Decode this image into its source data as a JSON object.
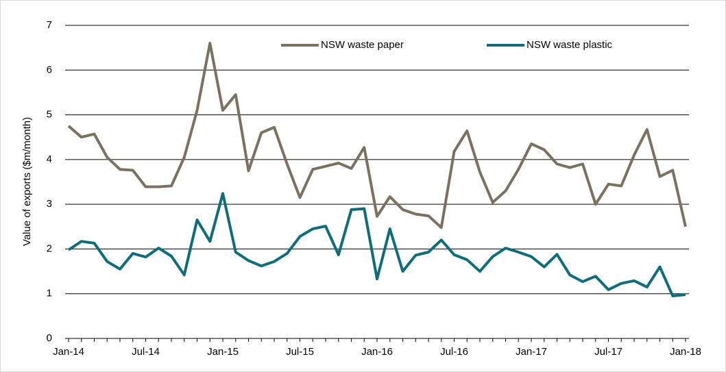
{
  "chart_data": {
    "type": "line",
    "y_label": "Value of exports ($m/month)",
    "x": [
      "Jan-14",
      null,
      null,
      null,
      null,
      null,
      "Jul-14",
      null,
      null,
      null,
      null,
      null,
      "Jan-15",
      null,
      null,
      null,
      null,
      null,
      "Jul-15",
      null,
      null,
      null,
      null,
      null,
      "Jan-16",
      null,
      null,
      null,
      null,
      null,
      "Jul-16",
      null,
      null,
      null,
      null,
      null,
      "Jan-17",
      null,
      null,
      null,
      null,
      null,
      "Jul-17",
      null,
      null,
      null,
      null,
      null,
      "Jan-18"
    ],
    "series": [
      {
        "name": "NSW waste paper",
        "color": "#7a7160",
        "values": [
          4.75,
          4.5,
          4.57,
          4.05,
          3.78,
          3.76,
          3.39,
          3.39,
          3.41,
          4.05,
          5.1,
          6.6,
          5.1,
          5.45,
          3.75,
          4.6,
          4.72,
          3.9,
          3.15,
          3.78,
          3.85,
          3.92,
          3.8,
          4.27,
          2.73,
          3.17,
          2.88,
          2.78,
          2.74,
          2.48,
          4.18,
          4.64,
          3.72,
          3.04,
          3.3,
          3.78,
          4.35,
          4.22,
          3.9,
          3.82,
          3.9,
          3.0,
          3.45,
          3.41,
          4.1,
          4.67,
          3.62,
          3.76,
          2.5
        ]
      },
      {
        "name": "NSW waste plastic",
        "color": "#0f6d7b",
        "values": [
          1.98,
          2.17,
          2.13,
          1.72,
          1.55,
          1.9,
          1.82,
          2.02,
          1.84,
          1.42,
          2.65,
          2.17,
          3.24,
          1.93,
          1.74,
          1.62,
          1.72,
          1.9,
          2.28,
          2.45,
          2.51,
          1.87,
          2.88,
          2.9,
          1.33,
          2.45,
          1.5,
          1.86,
          1.93,
          2.2,
          1.87,
          1.76,
          1.5,
          1.83,
          2.02,
          1.93,
          1.83,
          1.6,
          1.88,
          1.42,
          1.27,
          1.39,
          1.09,
          1.23,
          1.29,
          1.15,
          1.6,
          0.95,
          0.98
        ]
      }
    ],
    "ylim": [
      0,
      7
    ],
    "yticks": [
      0,
      1,
      2,
      3,
      4,
      5,
      6,
      7
    ],
    "grid": true,
    "legend": "top"
  }
}
